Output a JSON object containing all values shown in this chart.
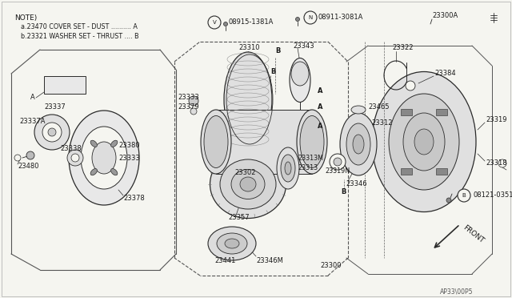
{
  "bg_color": "#f5f5f0",
  "line_color": "#2a2a2a",
  "text_color": "#1a1a1a",
  "figsize": [
    6.4,
    3.72
  ],
  "dpi": 100,
  "note_text": [
    "NOTE)",
    "  a.23470 COVER SET - DUST .......... A",
    "  b.23321 WASHER SET - THRUST .... B"
  ],
  "diagram_ref": "AP33\\00P5"
}
